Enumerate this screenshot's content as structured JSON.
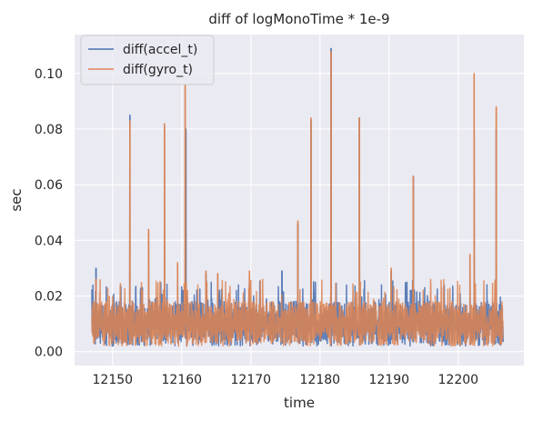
{
  "chart_data": {
    "type": "line",
    "title": "diff of logMonoTime * 1e-9",
    "xlabel": "time",
    "ylabel": "sec",
    "xlim": [
      12144.5,
      12209.5
    ],
    "ylim": [
      -0.005,
      0.114
    ],
    "x_ticks": [
      12150,
      12160,
      12170,
      12180,
      12190,
      12200
    ],
    "x_tick_labels": [
      "12150",
      "12160",
      "12170",
      "12180",
      "12190",
      "12200"
    ],
    "y_ticks": [
      0.0,
      0.02,
      0.04,
      0.06,
      0.08,
      0.1
    ],
    "y_tick_labels": [
      "0.00",
      "0.02",
      "0.04",
      "0.06",
      "0.08",
      "0.10"
    ],
    "grid": true,
    "legend_position": "top-left",
    "x_range": [
      12147,
      12206.5
    ],
    "baseline_band": [
      0.002,
      0.018
    ],
    "series": [
      {
        "name": "diff(accel_t)",
        "color": "#4c72b0",
        "spikes": [
          {
            "x": 12147.6,
            "y": 0.03
          },
          {
            "x": 12152.5,
            "y": 0.085
          },
          {
            "x": 12154.3,
            "y": 0.023
          },
          {
            "x": 12155.2,
            "y": 0.043
          },
          {
            "x": 12157.5,
            "y": 0.081
          },
          {
            "x": 12159.4,
            "y": 0.031
          },
          {
            "x": 12160.2,
            "y": 0.022
          },
          {
            "x": 12160.6,
            "y": 0.08
          },
          {
            "x": 12163.5,
            "y": 0.028
          },
          {
            "x": 12165.2,
            "y": 0.028
          },
          {
            "x": 12169.8,
            "y": 0.028
          },
          {
            "x": 12174.5,
            "y": 0.029
          },
          {
            "x": 12176.8,
            "y": 0.046
          },
          {
            "x": 12178.7,
            "y": 0.083
          },
          {
            "x": 12181.6,
            "y": 0.109
          },
          {
            "x": 12185.7,
            "y": 0.084
          },
          {
            "x": 12190.3,
            "y": 0.029
          },
          {
            "x": 12193.5,
            "y": 0.063
          },
          {
            "x": 12201.7,
            "y": 0.034
          },
          {
            "x": 12202.3,
            "y": 0.079
          },
          {
            "x": 12205.5,
            "y": 0.08
          }
        ]
      },
      {
        "name": "diff(gyro_t)",
        "color": "#dd8452",
        "spikes": [
          {
            "x": 12147.6,
            "y": 0.026
          },
          {
            "x": 12152.5,
            "y": 0.083
          },
          {
            "x": 12154.3,
            "y": 0.022
          },
          {
            "x": 12155.2,
            "y": 0.044
          },
          {
            "x": 12157.5,
            "y": 0.082
          },
          {
            "x": 12159.4,
            "y": 0.032
          },
          {
            "x": 12160.5,
            "y": 0.096
          },
          {
            "x": 12163.5,
            "y": 0.029
          },
          {
            "x": 12165.2,
            "y": 0.028
          },
          {
            "x": 12169.8,
            "y": 0.029
          },
          {
            "x": 12176.8,
            "y": 0.047
          },
          {
            "x": 12178.7,
            "y": 0.084
          },
          {
            "x": 12181.6,
            "y": 0.108
          },
          {
            "x": 12185.7,
            "y": 0.084
          },
          {
            "x": 12190.3,
            "y": 0.03
          },
          {
            "x": 12193.5,
            "y": 0.063
          },
          {
            "x": 12201.7,
            "y": 0.035
          },
          {
            "x": 12202.3,
            "y": 0.1
          },
          {
            "x": 12205.5,
            "y": 0.088
          }
        ]
      }
    ]
  },
  "colors": {
    "plot_background": "#eaeaf2",
    "grid": "#ffffff",
    "legend_background": "#eaeaf2",
    "legend_border": "#cccccc"
  }
}
